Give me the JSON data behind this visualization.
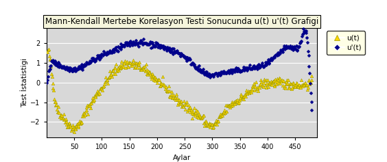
{
  "title": "Mann-Kendall Mertebe Korelasyon Testi Sonucunda u(t) u'(t) Grafigi",
  "xlabel": "Aylar",
  "ylabel": "Test İstatistigi",
  "ylim": [
    -2.8,
    2.8
  ],
  "xlim": [
    0,
    490
  ],
  "xticks": [
    50,
    100,
    150,
    200,
    250,
    300,
    350,
    400,
    450
  ],
  "yticks": [
    -2,
    -1,
    0,
    1,
    2
  ],
  "ut_color": "#FFD700",
  "utp_color": "#00008B",
  "background_color": "#D8D8D8",
  "outer_bg": "#FFFFFF",
  "legend_ut_label": "u(t)",
  "legend_utp_label": "u'(t)",
  "n_points": 480,
  "title_fontsize": 8.5,
  "axis_fontsize": 7.5,
  "tick_fontsize": 7,
  "ut_cp_x": [
    0,
    5,
    10,
    30,
    50,
    70,
    100,
    130,
    160,
    200,
    250,
    280,
    300,
    320,
    350,
    380,
    420,
    450,
    480
  ],
  "ut_cp_y": [
    1.5,
    1.2,
    0.0,
    -1.8,
    -2.3,
    -1.5,
    -0.2,
    0.8,
    0.9,
    0.1,
    -1.2,
    -1.8,
    -2.2,
    -1.5,
    -0.8,
    -0.2,
    0.0,
    -0.1,
    0.0
  ],
  "utp_cp_x": [
    0,
    5,
    15,
    30,
    50,
    80,
    100,
    130,
    150,
    180,
    200,
    220,
    250,
    270,
    290,
    310,
    330,
    350,
    370,
    400,
    420,
    440,
    460,
    470,
    478,
    480
  ],
  "utp_cp_y": [
    0.0,
    0.8,
    1.0,
    0.8,
    0.7,
    1.1,
    1.4,
    1.75,
    2.0,
    2.0,
    1.9,
    1.7,
    1.3,
    0.8,
    0.4,
    0.45,
    0.55,
    0.65,
    0.75,
    1.0,
    1.5,
    1.8,
    2.2,
    2.3,
    -1.0,
    -1.8
  ]
}
